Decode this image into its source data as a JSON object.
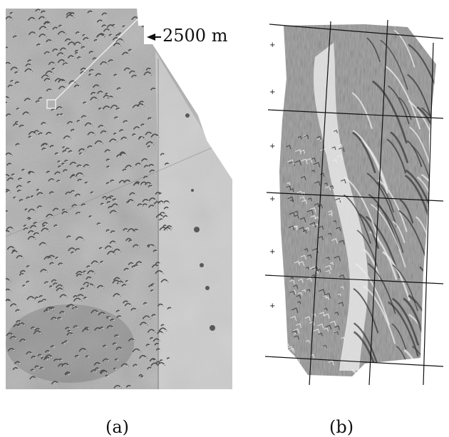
{
  "panels": [
    {
      "label": "(a)",
      "scale_bar": "2500 m",
      "texture": "aerial-dune-field",
      "colors": {
        "base": "#bdbdbd",
        "dark": "#4f4f4f",
        "light": "#e3e3e3"
      }
    },
    {
      "label": "(b)",
      "texture": "shaded-relief-dunes",
      "colors": {
        "base": "#a8a8a8",
        "dark": "#3c3c3c",
        "light": "#ececec"
      }
    }
  ]
}
